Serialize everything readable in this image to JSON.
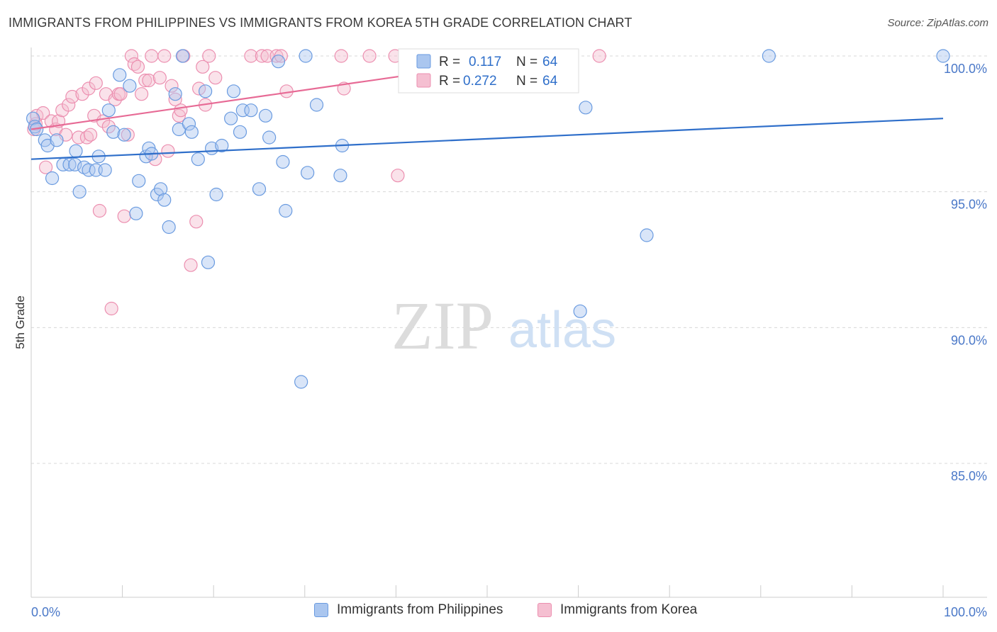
{
  "title": "IMMIGRANTS FROM PHILIPPINES VS IMMIGRANTS FROM KOREA 5TH GRADE CORRELATION CHART",
  "source": "Source: ZipAtlas.com",
  "watermark": {
    "zip": "ZIP",
    "atlas": "atlas"
  },
  "colors": {
    "philippines": "#6a9be0",
    "philippines_fill": "#aac6ef",
    "philippines_line": "#2f6fca",
    "korea": "#ec8fb0",
    "korea_fill": "#f5bfd1",
    "korea_line": "#e76a95",
    "tick_label": "#4a78c8",
    "grid": "#d8d8d8"
  },
  "stats_box": {
    "rows": [
      {
        "r_label": "R =",
        "r_value": "0.117",
        "n_label": "N =",
        "n_value": "64"
      },
      {
        "r_label": "R =",
        "r_value": "0.272",
        "n_label": "N =",
        "n_value": "64"
      }
    ]
  },
  "legend": {
    "items": [
      "Immigrants from Philippines",
      "Immigrants from Korea"
    ]
  },
  "chart_data": {
    "type": "scatter",
    "title": "IMMIGRANTS FROM PHILIPPINES VS IMMIGRANTS FROM KOREA 5TH GRADE CORRELATION CHART",
    "xlabel": "",
    "ylabel": "5th Grade",
    "xlim": [
      0,
      100
    ],
    "ylim": [
      80,
      100.8
    ],
    "x_tick_labels": [
      "0.0%",
      "100.0%"
    ],
    "y_ticks": [
      85,
      90,
      95,
      100
    ],
    "y_tick_labels": [
      "85.0%",
      "90.0%",
      "95.0%",
      "100.0%"
    ],
    "grid": true,
    "legend_position": "bottom-center",
    "series": [
      {
        "name": "Immigrants from Philippines",
        "R": 0.117,
        "N": 64,
        "trend": {
          "x": [
            0,
            100
          ],
          "y": [
            96.2,
            97.7
          ]
        },
        "points": [
          [
            0.2,
            97.7
          ],
          [
            0.4,
            97.4
          ],
          [
            0.6,
            97.3
          ],
          [
            1.5,
            96.9
          ],
          [
            1.8,
            96.7
          ],
          [
            2.3,
            95.5
          ],
          [
            2.8,
            96.9
          ],
          [
            3.5,
            96.0
          ],
          [
            4.2,
            96.0
          ],
          [
            4.8,
            96.0
          ],
          [
            4.9,
            96.5
          ],
          [
            5.3,
            95.0
          ],
          [
            5.8,
            95.9
          ],
          [
            6.3,
            95.8
          ],
          [
            7.1,
            95.8
          ],
          [
            7.4,
            96.3
          ],
          [
            8.1,
            95.8
          ],
          [
            8.5,
            98.0
          ],
          [
            9.0,
            97.2
          ],
          [
            9.7,
            99.3
          ],
          [
            10.2,
            97.1
          ],
          [
            10.8,
            98.9
          ],
          [
            11.5,
            94.2
          ],
          [
            11.8,
            95.4
          ],
          [
            12.6,
            96.3
          ],
          [
            12.9,
            96.6
          ],
          [
            13.2,
            96.4
          ],
          [
            13.8,
            94.9
          ],
          [
            14.2,
            95.1
          ],
          [
            14.6,
            94.7
          ],
          [
            15.1,
            93.7
          ],
          [
            15.8,
            98.6
          ],
          [
            16.2,
            97.3
          ],
          [
            16.6,
            100.0
          ],
          [
            17.3,
            97.5
          ],
          [
            17.6,
            97.2
          ],
          [
            18.3,
            96.2
          ],
          [
            19.1,
            98.7
          ],
          [
            19.4,
            92.4
          ],
          [
            19.8,
            96.6
          ],
          [
            20.3,
            94.9
          ],
          [
            20.9,
            96.7
          ],
          [
            21.9,
            97.7
          ],
          [
            22.2,
            98.7
          ],
          [
            22.9,
            97.2
          ],
          [
            23.2,
            98.0
          ],
          [
            24.1,
            98.0
          ],
          [
            25.0,
            95.1
          ],
          [
            25.7,
            97.8
          ],
          [
            26.1,
            97.0
          ],
          [
            27.1,
            99.8
          ],
          [
            27.6,
            96.1
          ],
          [
            27.9,
            94.3
          ],
          [
            29.6,
            88.0
          ],
          [
            30.1,
            100.0
          ],
          [
            30.3,
            95.7
          ],
          [
            31.3,
            98.2
          ],
          [
            33.9,
            95.6
          ],
          [
            34.1,
            96.7
          ],
          [
            60.2,
            90.6
          ],
          [
            60.8,
            98.1
          ],
          [
            67.5,
            93.4
          ],
          [
            80.9,
            100.0
          ],
          [
            100.0,
            100.0
          ]
        ]
      },
      {
        "name": "Immigrants from Korea",
        "R": 0.272,
        "N": 64,
        "trend": {
          "x": [
            0,
            56
          ],
          "y": [
            97.3,
            100.0
          ]
        },
        "points": [
          [
            0.3,
            97.3
          ],
          [
            0.5,
            97.5
          ],
          [
            0.6,
            97.8
          ],
          [
            1.3,
            97.9
          ],
          [
            1.6,
            95.9
          ],
          [
            2.2,
            97.6
          ],
          [
            2.7,
            97.3
          ],
          [
            3.0,
            97.6
          ],
          [
            3.4,
            98.0
          ],
          [
            3.8,
            97.1
          ],
          [
            4.1,
            98.2
          ],
          [
            4.5,
            98.5
          ],
          [
            5.2,
            97.0
          ],
          [
            5.6,
            98.6
          ],
          [
            6.1,
            97.0
          ],
          [
            6.3,
            98.8
          ],
          [
            6.5,
            97.1
          ],
          [
            6.9,
            97.8
          ],
          [
            7.1,
            99.0
          ],
          [
            7.5,
            94.3
          ],
          [
            7.9,
            97.6
          ],
          [
            8.2,
            98.6
          ],
          [
            8.5,
            97.4
          ],
          [
            8.8,
            90.7
          ],
          [
            9.2,
            98.4
          ],
          [
            9.6,
            98.6
          ],
          [
            9.8,
            98.6
          ],
          [
            10.2,
            94.1
          ],
          [
            10.6,
            97.1
          ],
          [
            11.0,
            100.0
          ],
          [
            11.3,
            99.7
          ],
          [
            11.7,
            99.6
          ],
          [
            12.1,
            98.6
          ],
          [
            12.5,
            99.1
          ],
          [
            12.9,
            99.1
          ],
          [
            13.2,
            100.0
          ],
          [
            13.6,
            96.2
          ],
          [
            14.1,
            99.2
          ],
          [
            14.6,
            100.0
          ],
          [
            15.0,
            96.5
          ],
          [
            15.4,
            98.9
          ],
          [
            15.8,
            98.4
          ],
          [
            16.2,
            97.8
          ],
          [
            16.4,
            98.0
          ],
          [
            16.7,
            100.0
          ],
          [
            17.5,
            92.3
          ],
          [
            18.1,
            93.9
          ],
          [
            18.4,
            98.8
          ],
          [
            18.8,
            99.6
          ],
          [
            19.1,
            98.2
          ],
          [
            19.5,
            100.0
          ],
          [
            20.2,
            99.2
          ],
          [
            24.1,
            100.0
          ],
          [
            25.3,
            100.0
          ],
          [
            25.9,
            100.0
          ],
          [
            26.9,
            100.0
          ],
          [
            27.4,
            100.0
          ],
          [
            28.0,
            98.7
          ],
          [
            34.0,
            100.0
          ],
          [
            34.3,
            98.8
          ],
          [
            37.1,
            100.0
          ],
          [
            39.9,
            100.0
          ],
          [
            40.2,
            95.6
          ],
          [
            62.3,
            100.0
          ]
        ]
      }
    ]
  }
}
